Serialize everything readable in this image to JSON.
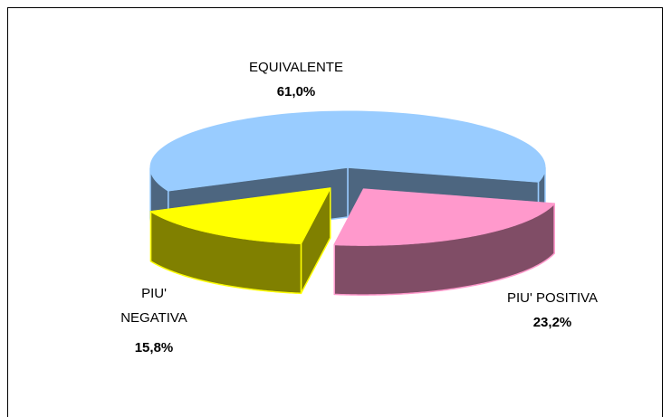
{
  "chart_data": {
    "type": "pie3d",
    "categories": [
      "EQUIVALENTE",
      "PIU' NEGATIVA",
      "PIU' POSITIVA"
    ],
    "values": [
      61.0,
      15.8,
      23.2
    ],
    "value_labels": [
      "61,0%",
      "15,8%",
      "23,2%"
    ],
    "colors": [
      "#99ccff",
      "#ffff00",
      "#ff99cc"
    ],
    "side_colors": [
      "#4d6680",
      "#808000",
      "#804d66"
    ]
  }
}
